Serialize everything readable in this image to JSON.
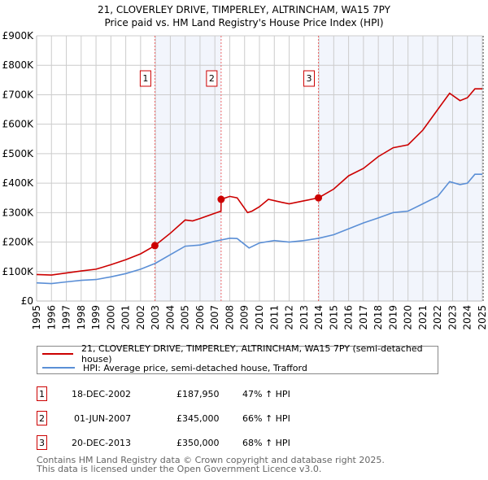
{
  "chart_data": {
    "type": "line",
    "title": "21, CLOVERLEY DRIVE, TIMPERLEY, ALTRINCHAM, WA15 7PY",
    "subtitle": "Price paid vs. HM Land Registry's House Price Index (HPI)",
    "xlabel": "",
    "ylabel": "",
    "xlim": [
      1995,
      2025
    ],
    "ylim": [
      0,
      900000
    ],
    "y_ticks": [
      0,
      100000,
      200000,
      300000,
      400000,
      500000,
      600000,
      700000,
      800000,
      900000
    ],
    "y_tick_labels": [
      "£0",
      "£100K",
      "£200K",
      "£300K",
      "£400K",
      "£500K",
      "£600K",
      "£700K",
      "£800K",
      "£900K"
    ],
    "x_ticks": [
      1995,
      1996,
      1997,
      1998,
      1999,
      2000,
      2001,
      2002,
      2003,
      2004,
      2005,
      2006,
      2007,
      2008,
      2009,
      2010,
      2011,
      2012,
      2013,
      2014,
      2015,
      2016,
      2017,
      2018,
      2019,
      2020,
      2021,
      2022,
      2023,
      2024,
      2025
    ],
    "grid": true,
    "legend_placement": "below",
    "series": [
      {
        "name": "21, CLOVERLEY DRIVE, TIMPERLEY, ALTRINCHAM, WA15 7PY (semi-detached house)",
        "color": "#cc0000",
        "x": [
          1995,
          1996,
          1997,
          1998,
          1999,
          2000,
          2001,
          2002,
          2002.96,
          2004,
          2005,
          2005.5,
          2006,
          2007,
          2007.41,
          2007.42,
          2008,
          2008.5,
          2009.2,
          2009.5,
          2010,
          2010.6,
          2011.5,
          2012,
          2013,
          2013.97,
          2015,
          2016,
          2017,
          2018,
          2019,
          2020,
          2021,
          2022,
          2022.8,
          2023.5,
          2024,
          2024.5,
          2025
        ],
        "y": [
          90000,
          88000,
          95000,
          102000,
          108000,
          123000,
          140000,
          160000,
          187950,
          230000,
          275000,
          272000,
          280000,
          298000,
          305000,
          345000,
          355000,
          350000,
          300000,
          305000,
          320000,
          345000,
          335000,
          330000,
          340000,
          350000,
          380000,
          425000,
          450000,
          490000,
          520000,
          530000,
          580000,
          650000,
          705000,
          680000,
          690000,
          720000,
          720000
        ]
      },
      {
        "name": "HPI: Average price, semi-detached house, Trafford",
        "color": "#5b8fd6",
        "x": [
          1995,
          1996,
          1997,
          1998,
          1999,
          2000,
          2001,
          2002,
          2003,
          2004,
          2005,
          2006,
          2007,
          2008,
          2008.5,
          2009.3,
          2010,
          2011,
          2012,
          2013,
          2014,
          2015,
          2016,
          2017,
          2018,
          2019,
          2020,
          2021,
          2022,
          2022.8,
          2023.5,
          2024,
          2024.5,
          2025
        ],
        "y": [
          61500,
          59000,
          65000,
          70000,
          73000,
          82000,
          93000,
          108000,
          128000,
          157000,
          186000,
          190000,
          203000,
          213000,
          212000,
          180000,
          197000,
          205000,
          200000,
          205000,
          213000,
          225000,
          245000,
          265000,
          282000,
          300000,
          305000,
          330000,
          355000,
          405000,
          395000,
          400000,
          430000,
          430000
        ]
      }
    ],
    "shaded_ranges": [
      [
        2002.96,
        2007.42
      ],
      [
        2013.97,
        2025
      ]
    ],
    "annotations": [
      {
        "label": "1",
        "x": 2002.96,
        "y": 187950
      },
      {
        "label": "2",
        "x": 2007.42,
        "y": 345000
      },
      {
        "label": "3",
        "x": 2013.97,
        "y": 350000
      }
    ]
  },
  "legend": {
    "property": "21, CLOVERLEY DRIVE, TIMPERLEY, ALTRINCHAM, WA15 7PY (semi-detached house)",
    "hpi": "HPI: Average price, semi-detached house, Trafford"
  },
  "sales": [
    {
      "num": "1",
      "date": "18-DEC-2002",
      "price": "£187,950",
      "hpi": "47% ↑ HPI"
    },
    {
      "num": "2",
      "date": "01-JUN-2007",
      "price": "£345,000",
      "hpi": "66% ↑ HPI"
    },
    {
      "num": "3",
      "date": "20-DEC-2013",
      "price": "£350,000",
      "hpi": "68% ↑ HPI"
    }
  ],
  "footer": {
    "line1": "Contains HM Land Registry data © Crown copyright and database right 2025.",
    "line2": "This data is licensed under the Open Government Licence v3.0."
  }
}
